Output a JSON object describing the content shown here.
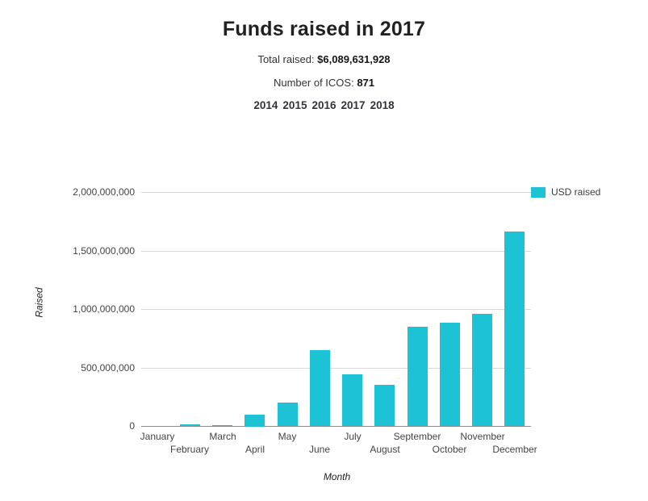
{
  "page": {
    "title": "Funds raised in 2017",
    "total_raised_label": "Total raised:",
    "total_raised_value": "$6,089,631,928",
    "ico_count_label": "Number of ICOS:",
    "ico_count_value": "871",
    "year_links": [
      "2014",
      "2015",
      "2016",
      "2017",
      "2018"
    ]
  },
  "chart_data": {
    "type": "bar",
    "title": "",
    "categories": [
      "January",
      "February",
      "March",
      "April",
      "May",
      "June",
      "July",
      "August",
      "September",
      "October",
      "November",
      "December"
    ],
    "series": [
      {
        "name": "USD raised",
        "values": [
          3000000,
          15000000,
          5000000,
          100000000,
          200000000,
          650000000,
          440000000,
          350000000,
          850000000,
          880000000,
          960000000,
          1660000000
        ]
      }
    ],
    "xlabel": "Month",
    "ylabel": "Raised",
    "ylim": [
      0,
      2000000000
    ],
    "yticks": [
      0,
      500000000,
      1000000000,
      1500000000,
      2000000000
    ],
    "bar_color": "#1dc2d4",
    "grid": true,
    "legend_position": "right-top"
  }
}
